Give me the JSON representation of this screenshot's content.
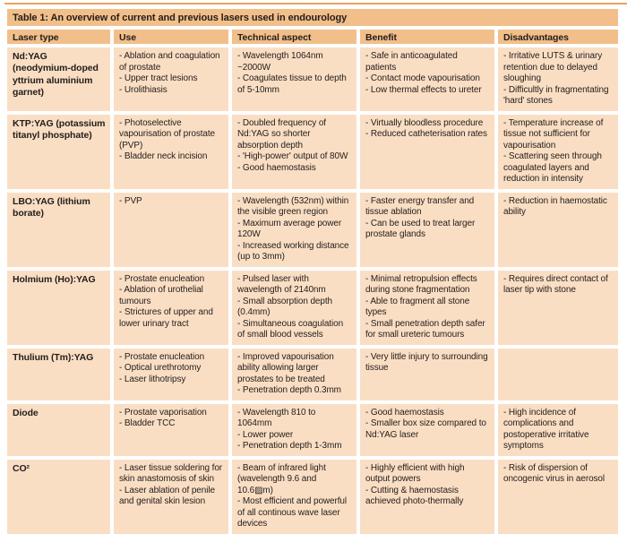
{
  "table": {
    "title": "Table 1: An overview of current and previous lasers used in endourology",
    "columns": [
      "Laser type",
      "Use",
      "Technical aspect",
      "Benefit",
      "Disadvantages"
    ],
    "rows": [
      {
        "laser_type": "Nd:YAG (neodymium-doped yttrium aluminium garnet)",
        "use": "- Ablation and coagulation of prostate\n- Upper tract lesions\n- Urolithiasis",
        "technical": "- Wavelength 1064nm ~2000W\n- Coagulates tissue to depth of 5-10mm",
        "benefit": "- Safe in anticoagulated patients\n- Contact mode vapourisation\n- Low thermal effects to ureter",
        "disadvantages": "- Irritative LUTS & urinary retention due to delayed sloughing\n- Difficultly in fragmentating 'hard' stones"
      },
      {
        "laser_type": "KTP:YAG (potassium titanyl phosphate)",
        "use": "- Photoselective vapourisation of prostate (PVP)\n- Bladder neck incision",
        "technical": "- Doubled frequency of Nd:YAG so shorter absorption depth\n- 'High-power' output of 80W\n- Good haemostasis",
        "benefit": "- Virtually bloodless procedure\n- Reduced catheterisation rates",
        "disadvantages": "- Temperature increase of tissue not sufficient for vapourisation\n- Scattering seen through coagulated layers and reduction in intensity"
      },
      {
        "laser_type": "LBO:YAG (lithium borate)",
        "use": "- PVP",
        "technical": "- Wavelength (532nm) within the visible green region\n- Maximum average power 120W\n- Increased working distance (up to 3mm)",
        "benefit": "- Faster energy transfer and tissue ablation\n- Can be used to treat larger prostate glands",
        "disadvantages": "- Reduction in haemostatic ability"
      },
      {
        "laser_type": "Holmium (Ho):YAG",
        "use": "- Prostate enucleation\n- Ablation of urothelial tumours\n- Strictures of upper and lower urinary tract",
        "technical": "- Pulsed laser with wavelength of 2140nm\n- Small absorption depth (0.4mm)\n- Simultaneous coagulation of small blood vessels",
        "benefit": "- Minimal retropulsion effects during stone fragmentation\n- Able to fragment all stone types\n- Small penetration depth safer for small ureteric tumours",
        "disadvantages": "- Requires direct contact of laser tip with stone"
      },
      {
        "laser_type": "Thulium (Tm):YAG",
        "use": "- Prostate enucleation\n- Optical urethrotomy\n- Laser lithotripsy",
        "technical": "- Improved vapourisation ability allowing larger prostates to be treated\n- Penetration depth 0.3mm",
        "benefit": "- Very little injury to surrounding tissue",
        "disadvantages": ""
      },
      {
        "laser_type": "Diode",
        "use": "- Prostate vaporisation\n- Bladder TCC",
        "technical": "- Wavelength 810 to 1064mm\n- Lower power\n- Penetration depth 1-3mm",
        "benefit": "- Good haemostasis\n- Smaller box size compared to Nd:YAG laser",
        "disadvantages": "- High incidence of complications and postoperative irritative symptoms"
      },
      {
        "laser_type": "CO²",
        "use": "- Laser tissue soldering for skin anastomosis of skin\n- Laser ablation of penile and genital skin lesion",
        "technical": "- Beam of infrared light (wavelength 9.6 and 10.6▨m)\n- Most efficient and powerful of all continous wave laser devices",
        "benefit": "- Highly efficient with high output powers\n- Cutting & haemostasis achieved photo-thermally",
        "disadvantages": "- Risk of dispersion of oncogenic virus in aerosol"
      }
    ]
  },
  "colors": {
    "band": "#f2bf8a",
    "cell": "#fadec4",
    "top_rule": "#e9a35e",
    "text": "#221d1a",
    "background": "#ffffff"
  }
}
